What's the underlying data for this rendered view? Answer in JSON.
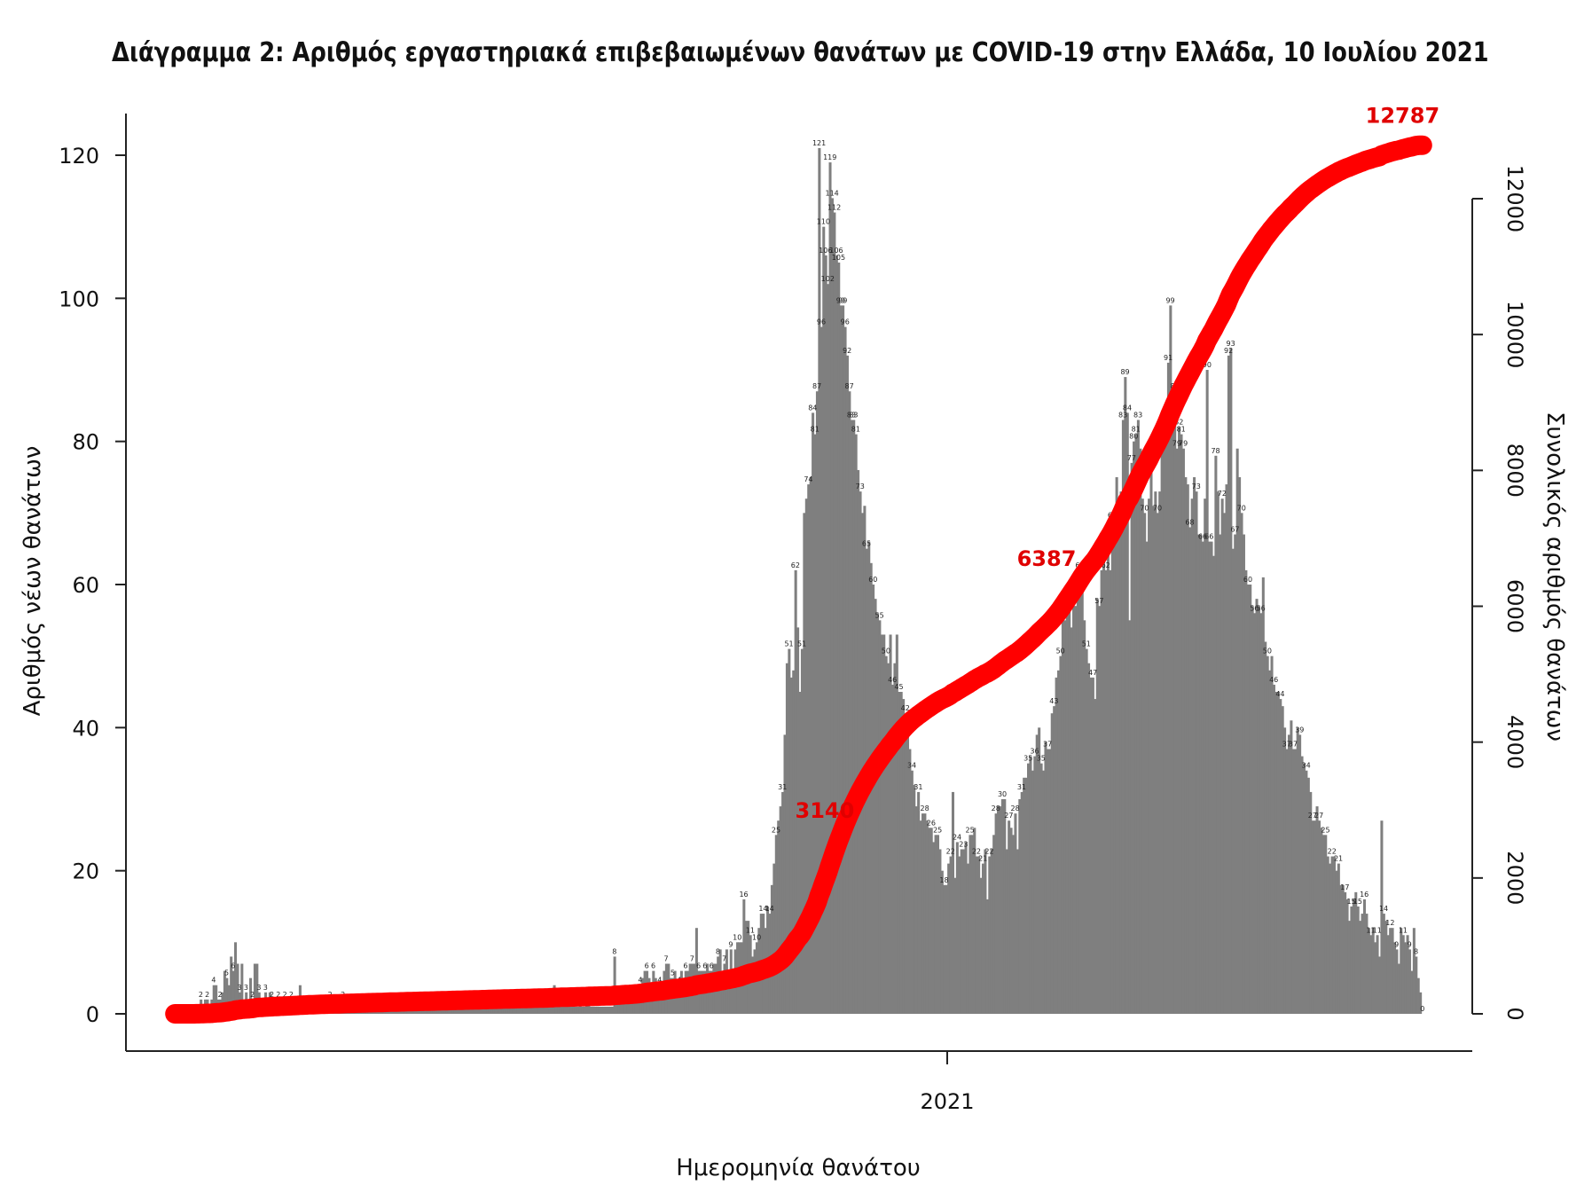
{
  "chart_data": {
    "type": "bar",
    "title": "Διάγραμμα 2: Αριθμός εργαστηριακά επιβεβαιωμένων θανάτων με COVID-19 στην Ελλάδα, 10 Ιουλίου 2021",
    "xlabel": "Ημερομηνία θανάτου",
    "ylabel": "Αριθμός νέων θανάτων",
    "y2label": "Συνολικός αριθμός θανάτων",
    "x_tick_labels": [
      "2021"
    ],
    "ylim": [
      0,
      120
    ],
    "y_ticks": [
      0,
      20,
      40,
      60,
      80,
      100,
      120
    ],
    "y2lim": [
      0,
      12787
    ],
    "y2_ticks": [
      0,
      2000,
      4000,
      6000,
      8000,
      10000,
      12000
    ],
    "grid": false,
    "bar_color": "#7f7f7f",
    "line_color": "#ff0000",
    "series": [
      {
        "kind": "bar",
        "values": [
          0,
          0,
          0,
          0,
          0,
          0,
          0,
          0,
          0,
          0,
          1,
          0,
          2,
          1,
          2,
          2,
          0,
          2,
          4,
          4,
          2,
          2,
          3,
          6,
          5,
          4,
          8,
          6,
          10,
          7,
          3,
          7,
          2,
          3,
          2,
          5,
          2,
          7,
          7,
          3,
          2,
          2,
          3,
          2,
          3,
          2,
          2,
          2,
          2,
          2,
          1,
          2,
          2,
          2,
          2,
          2,
          2,
          1,
          4,
          2,
          1,
          2,
          2,
          1,
          2,
          1,
          1,
          2,
          1,
          1,
          2,
          1,
          2,
          1,
          1,
          1,
          1,
          1,
          2,
          2,
          1,
          1,
          2,
          1,
          1,
          1,
          1,
          1,
          2,
          1,
          1,
          1,
          1,
          1,
          1,
          1,
          1,
          1,
          2,
          1,
          1,
          1,
          1,
          1,
          1,
          1,
          1,
          1,
          1,
          1,
          1,
          1,
          1,
          1,
          1,
          1,
          1,
          1,
          1,
          1,
          1,
          1,
          1,
          1,
          1,
          1,
          1,
          1,
          2,
          1,
          1,
          1,
          1,
          1,
          1,
          1,
          1,
          1,
          1,
          1,
          1,
          1,
          1,
          1,
          1,
          1,
          1,
          2,
          1,
          1,
          1,
          1,
          1,
          1,
          1,
          1,
          1,
          1,
          1,
          1,
          1,
          1,
          1,
          1,
          1,
          1,
          1,
          1,
          1,
          1,
          1,
          1,
          1,
          1,
          2,
          1,
          4,
          1,
          1,
          2,
          1,
          1,
          1,
          1,
          1,
          1,
          1,
          1,
          2,
          1,
          1,
          2,
          2,
          1,
          1,
          1,
          1,
          1,
          1,
          1,
          1,
          1,
          1,
          1,
          8,
          2,
          2,
          2,
          3,
          3,
          2,
          2,
          3,
          3,
          3,
          4,
          4,
          5,
          6,
          6,
          5,
          3,
          6,
          5,
          4,
          4,
          3,
          6,
          7,
          7,
          5,
          5,
          6,
          4,
          4,
          6,
          5,
          6,
          6,
          7,
          7,
          7,
          12,
          6,
          6,
          6,
          6,
          7,
          6,
          6,
          7,
          7,
          8,
          9,
          6,
          7,
          9,
          5,
          9,
          6,
          9,
          10,
          10,
          10,
          16,
          13,
          13,
          11,
          8,
          9,
          10,
          12,
          14,
          14,
          12,
          15,
          14,
          18,
          21,
          25,
          27,
          29,
          31,
          39,
          49,
          51,
          47,
          48,
          62,
          54,
          45,
          51,
          70,
          72,
          74,
          75,
          84,
          81,
          87,
          121,
          96,
          110,
          106,
          102,
          119,
          114,
          112,
          106,
          105,
          99,
          99,
          96,
          92,
          87,
          83,
          83,
          81,
          76,
          73,
          70,
          71,
          65,
          66,
          63,
          60,
          58,
          56,
          55,
          53,
          53,
          50,
          49,
          53,
          46,
          49,
          53,
          45,
          45,
          44,
          42,
          39,
          37,
          34,
          32,
          29,
          31,
          27,
          28,
          28,
          27,
          26,
          26,
          24,
          25,
          25,
          23,
          20,
          18,
          18,
          21,
          22,
          31,
          19,
          24,
          22,
          23,
          23,
          24,
          21,
          25,
          25,
          26,
          22,
          22,
          19,
          21,
          23,
          16,
          22,
          23,
          25,
          28,
          29,
          29,
          30,
          30,
          23,
          27,
          26,
          25,
          28,
          23,
          30,
          31,
          33,
          33,
          35,
          36,
          34,
          36,
          39,
          40,
          35,
          34,
          38,
          37,
          37,
          42,
          43,
          47,
          48,
          50,
          55,
          55,
          57,
          58,
          54,
          57,
          57,
          60,
          62,
          62,
          55,
          51,
          49,
          47,
          47,
          44,
          58,
          57,
          62,
          64,
          62,
          66,
          62,
          69,
          70,
          75,
          70,
          73,
          83,
          89,
          84,
          55,
          77,
          80,
          81,
          83,
          79,
          72,
          70,
          66,
          72,
          78,
          71,
          73,
          70,
          73,
          80,
          82,
          83,
          91,
          99,
          85,
          87,
          79,
          82,
          81,
          79,
          75,
          74,
          68,
          72,
          75,
          73,
          67,
          67,
          66,
          72,
          90,
          66,
          66,
          64,
          78,
          73,
          67,
          72,
          70,
          74,
          92,
          93,
          65,
          67,
          79,
          75,
          70,
          67,
          62,
          60,
          60,
          57,
          56,
          58,
          57,
          56,
          61,
          52,
          50,
          48,
          50,
          46,
          45,
          45,
          44,
          43,
          40,
          37,
          39,
          41,
          37,
          37,
          40,
          39,
          36,
          35,
          34,
          33,
          31,
          27,
          27,
          29,
          27,
          26,
          25,
          25,
          22,
          21,
          22,
          22,
          20,
          21,
          18,
          18,
          17,
          16,
          13,
          15,
          16,
          17,
          15,
          13,
          14,
          16,
          14,
          12,
          11,
          12,
          10,
          11,
          8,
          27,
          14,
          13,
          11,
          12,
          12,
          10,
          9,
          7,
          12,
          11,
          10,
          11,
          9,
          6,
          12,
          8,
          5,
          3,
          0
        ]
      },
      {
        "kind": "line",
        "cumulative_labels": [
          {
            "value": 3140,
            "text": "3140"
          },
          {
            "value": 6387,
            "text": "6387"
          },
          {
            "value": 12787,
            "text": "12787"
          }
        ]
      }
    ],
    "annotated_bar_labels": [
      {
        "text": "10"
      },
      {
        "text": "121"
      },
      {
        "text": "119"
      },
      {
        "text": "112"
      },
      {
        "text": "110"
      },
      {
        "text": "99"
      },
      {
        "text": "93"
      },
      {
        "text": "92"
      },
      {
        "text": "89"
      },
      {
        "text": "62"
      },
      {
        "text": "61"
      },
      {
        "text": "60"
      },
      {
        "text": "40"
      },
      {
        "text": "37"
      },
      {
        "text": "31"
      },
      {
        "text": "27"
      },
      {
        "text": "16"
      },
      {
        "text": "12"
      },
      {
        "text": "8"
      },
      {
        "text": "7"
      }
    ]
  }
}
